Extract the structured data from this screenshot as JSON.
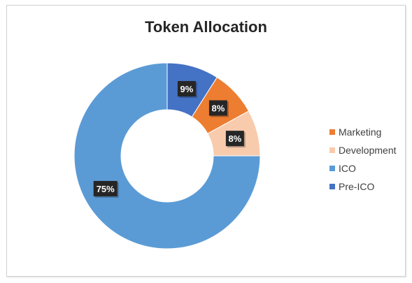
{
  "chart_data": {
    "type": "pie",
    "variant": "donut",
    "title": "Token Allocation",
    "slices": [
      {
        "label": "Pre-ICO",
        "value": 9,
        "display": "9%",
        "color": "#4472c4"
      },
      {
        "label": "Marketing",
        "value": 8,
        "display": "8%",
        "color": "#ed7d31"
      },
      {
        "label": "Development",
        "value": 8,
        "display": "8%",
        "color": "#f8cbad"
      },
      {
        "label": "ICO",
        "value": 75,
        "display": "75%",
        "color": "#5b9bd5"
      }
    ],
    "legend_order": [
      "Marketing",
      "Development",
      "ICO",
      "Pre-ICO"
    ],
    "legend_position": "right",
    "data_label_style": {
      "background": "#262626",
      "text_color": "#ffffff"
    }
  }
}
